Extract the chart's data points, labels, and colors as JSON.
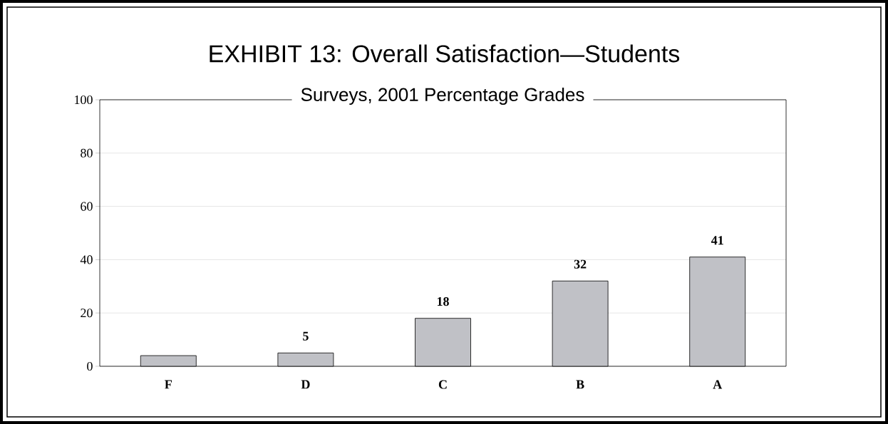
{
  "chart_data": {
    "type": "bar",
    "title": "EXHIBIT 13: Overall Satisfaction—Students",
    "subtitle": "Surveys, 2001 Percentage Grades",
    "categories": [
      "F",
      "D",
      "C",
      "B",
      "A"
    ],
    "values": [
      4,
      5,
      18,
      32,
      41
    ],
    "value_labels": [
      null,
      "5",
      "18",
      "32",
      "41"
    ],
    "color": "#c0c1c6",
    "ylim": [
      0,
      100
    ],
    "yticks": [
      0,
      20,
      40,
      60,
      80,
      100
    ],
    "grid": "y"
  }
}
